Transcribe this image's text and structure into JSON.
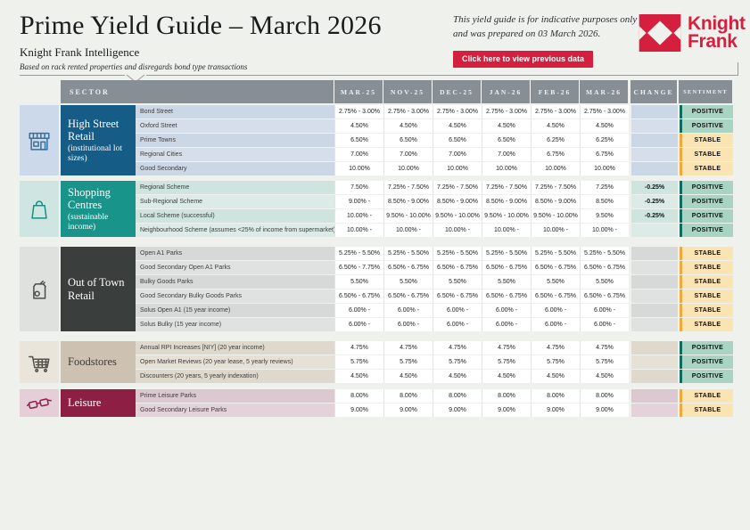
{
  "header": {
    "title": "Prime Yield Guide – March 2026",
    "subtitle": "Knight Frank Intelligence",
    "tagline": "Based on rack rented properties and disregards bond type transactions",
    "note_line1": "This yield guide is for indicative purposes only",
    "note_line2": "and was prepared on 03 March 2026.",
    "button_label": "Click here to view previous data",
    "brand": {
      "line1": "Knight",
      "line2": "Frank",
      "color": "#d51f3e"
    }
  },
  "table": {
    "columns": [
      "SECTOR",
      "MAR-25",
      "NOV-25",
      "DEC-25",
      "JAN-26",
      "FEB-26",
      "MAR-26",
      "CHANGE",
      "SENTIMENT"
    ],
    "header_bg": "#878e94",
    "sentiment_styles": {
      "POSITIVE": {
        "bg": "#a9d4c3",
        "stripe": "#14695e"
      },
      "STABLE": {
        "bg": "#fbe4b4",
        "stripe": "#f0a73b"
      }
    },
    "sections": [
      {
        "id": "high-street-retail",
        "name": "High Street Retail",
        "subtitle": "(institutional lot sizes)",
        "icon": "storefront-icon",
        "colors": {
          "box": "#155c87",
          "box_text": "#ffffff",
          "panel": "#ccd9ea",
          "tint": "#ccd7e5",
          "tint_alt": "#d6dfe9",
          "icon": "#36719f"
        },
        "rows": [
          {
            "label": "Bond Street",
            "values": [
              "2.75% - 3.00%",
              "2.75% - 3.00%",
              "2.75% - 3.00%",
              "2.75% - 3.00%",
              "2.75% - 3.00%",
              "2.75% - 3.00%"
            ],
            "change": "",
            "sentiment": "POSITIVE"
          },
          {
            "label": "Oxford Street",
            "values": [
              "4.50%",
              "4.50%",
              "4.50%",
              "4.50%",
              "4.50%",
              "4.50%"
            ],
            "change": "",
            "sentiment": "POSITIVE"
          },
          {
            "label": "Prime Towns",
            "values": [
              "6.50%",
              "6.50%",
              "6.50%",
              "6.50%",
              "6.25%",
              "6.25%"
            ],
            "change": "",
            "sentiment": "STABLE"
          },
          {
            "label": "Regional Cities",
            "values": [
              "7.00%",
              "7.00%",
              "7.00%",
              "7.00%",
              "6.75%",
              "6.75%"
            ],
            "change": "",
            "sentiment": "STABLE"
          },
          {
            "label": "Good Secondary",
            "values": [
              "10.00%",
              "10.00%",
              "10.00%",
              "10.00%",
              "10.00%",
              "10.00%"
            ],
            "change": "",
            "sentiment": "STABLE"
          }
        ]
      },
      {
        "id": "shopping-centres",
        "name": "Shopping Centres",
        "subtitle": "(sustainable income)",
        "icon": "shopping-bag-icon",
        "colors": {
          "box": "#18948a",
          "box_text": "#ffffff",
          "panel": "#cfe5e1",
          "tint": "#cfe3df",
          "tint_alt": "#dcebe7",
          "icon": "#1b8d82"
        },
        "rows": [
          {
            "label": "Regional Scheme",
            "values": [
              "7.50%",
              "7.25% - 7.50%",
              "7.25% - 7.50%",
              "7.25% - 7.50%",
              "7.25% - 7.50%",
              "7.25%"
            ],
            "change": "-0.25%",
            "sentiment": "POSITIVE"
          },
          {
            "label": "Sub-Regional Scheme",
            "values": [
              "9.00% -",
              "8.50% - 9.00%",
              "8.50% - 9.00%",
              "8.50% - 9.00%",
              "8.50% - 9.00%",
              "8.50%"
            ],
            "change": "-0.25%",
            "sentiment": "POSITIVE"
          },
          {
            "label": "Local Scheme (successful)",
            "values": [
              "10.00% -",
              "9.50% - 10.00%",
              "9.50% - 10.00%",
              "9.50% - 10.00%",
              "9.50% - 10.00%",
              "9.50%"
            ],
            "change": "-0.25%",
            "sentiment": "POSITIVE"
          },
          {
            "label": "Neighbourhood Scheme (assumes <25% of income from supermarket)",
            "values": [
              "10.00% -",
              "10.00% -",
              "10.00% -",
              "10.00% -",
              "10.00% -",
              "10.00% -"
            ],
            "change": "",
            "sentiment": "POSITIVE"
          }
        ]
      },
      {
        "id": "out-of-town-retail",
        "name": "Out of Town Retail",
        "subtitle": "",
        "icon": "grocery-bag-icon",
        "colors": {
          "box": "#3a3f3d",
          "box_text": "#ffffff",
          "panel": "#dfe1df",
          "tint": "#d7d9d8",
          "tint_alt": "#e0e2e1",
          "icon": "#4a4f4d"
        },
        "rows": [
          {
            "label": "Open A1 Parks",
            "values": [
              "5.25% - 5.50%",
              "5.25% - 5.50%",
              "5.25% - 5.50%",
              "5.25% - 5.50%",
              "5.25% - 5.50%",
              "5.25% - 5.50%"
            ],
            "change": "",
            "sentiment": "STABLE"
          },
          {
            "label": "Good Secondary Open A1 Parks",
            "values": [
              "6.50% - 7.75%",
              "6.50% - 6.75%",
              "6.50% - 6.75%",
              "6.50% - 6.75%",
              "6.50% - 6.75%",
              "6.50% - 6.75%"
            ],
            "change": "",
            "sentiment": "STABLE"
          },
          {
            "label": "Bulky Goods Parks",
            "values": [
              "5.50%",
              "5.50%",
              "5.50%",
              "5.50%",
              "5.50%",
              "5.50%"
            ],
            "change": "",
            "sentiment": "STABLE"
          },
          {
            "label": "Good Secondary Bulky Goods Parks",
            "values": [
              "6.50% - 6.75%",
              "6.50% - 6.75%",
              "6.50% - 6.75%",
              "6.50% - 6.75%",
              "6.50% - 6.75%",
              "6.50% - 6.75%"
            ],
            "change": "",
            "sentiment": "STABLE"
          },
          {
            "label": "Solus Open A1 (15 year income)",
            "values": [
              "6.00% -",
              "6.00% -",
              "6.00% -",
              "6.00% -",
              "6.00% -",
              "6.00% -"
            ],
            "change": "",
            "sentiment": "STABLE"
          },
          {
            "label": "Solus Bulky (15 year income)",
            "values": [
              "6.00% -",
              "6.00% -",
              "6.00% -",
              "6.00% -",
              "6.00% -",
              "6.00% -"
            ],
            "change": "",
            "sentiment": "STABLE"
          }
        ]
      },
      {
        "id": "foodstores",
        "name": "Foodstores",
        "subtitle": "",
        "icon": "shopping-cart-icon",
        "colors": {
          "box": "#cdc2b1",
          "box_text": "#3d3a35",
          "panel": "#e9e5db",
          "tint": "#ded9cc",
          "tint_alt": "#e6e1d6",
          "icon": "#55504a"
        },
        "rows": [
          {
            "label": "Annual RPI Increases [NIY] (20 year income)",
            "values": [
              "4.75%",
              "4.75%",
              "4.75%",
              "4.75%",
              "4.75%",
              "4.75%"
            ],
            "change": "",
            "sentiment": "POSITIVE"
          },
          {
            "label": "Open Market Reviews (20 year lease, 5 yearly reviews)",
            "values": [
              "5.75%",
              "5.75%",
              "5.75%",
              "5.75%",
              "5.75%",
              "5.75%"
            ],
            "change": "",
            "sentiment": "POSITIVE"
          },
          {
            "label": "Discounters (20 years, 5 yearly indexation)",
            "values": [
              "4.50%",
              "4.50%",
              "4.50%",
              "4.50%",
              "4.50%",
              "4.50%"
            ],
            "change": "",
            "sentiment": "POSITIVE"
          }
        ]
      },
      {
        "id": "leisure",
        "name": "Leisure",
        "subtitle": "",
        "icon": "3d-glasses-icon",
        "colors": {
          "box": "#8e1f44",
          "box_text": "#ffffff",
          "panel": "#e5ced8",
          "tint": "#dbc8d0",
          "tint_alt": "#e3d2d9",
          "icon": "#8e2043"
        },
        "rows": [
          {
            "label": "Prime Leisure Parks",
            "values": [
              "8.00%",
              "8.00%",
              "8.00%",
              "8.00%",
              "8.00%",
              "8.00%"
            ],
            "change": "",
            "sentiment": "STABLE"
          },
          {
            "label": "Good Secondary Leisure Parks",
            "values": [
              "9.00%",
              "9.00%",
              "9.00%",
              "9.00%",
              "9.00%",
              "9.00%"
            ],
            "change": "",
            "sentiment": "STABLE"
          }
        ]
      }
    ]
  }
}
